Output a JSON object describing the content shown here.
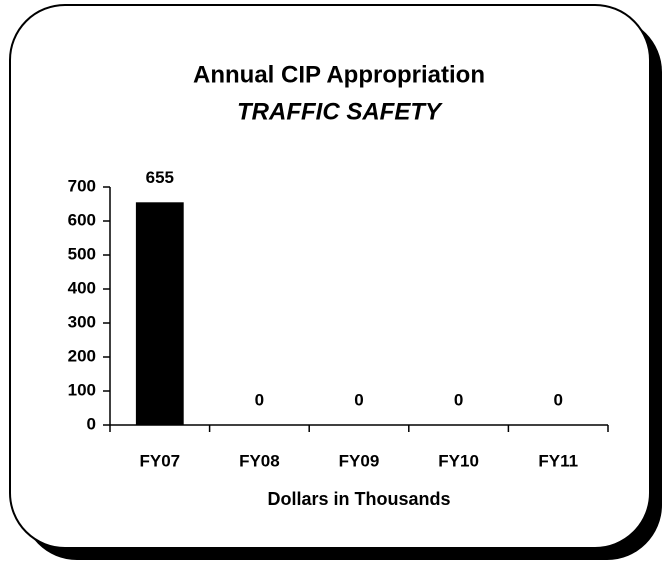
{
  "chart_data": {
    "type": "bar",
    "title": "Annual CIP Appropriation",
    "subtitle": "TRAFFIC SAFETY",
    "x_label": "Dollars in Thousands",
    "categories": [
      "FY07",
      "FY08",
      "FY09",
      "FY10",
      "FY11"
    ],
    "values": [
      655,
      0,
      0,
      0,
      0
    ],
    "color": "#000000",
    "ylim": [
      0,
      700
    ],
    "yticks": [
      0,
      100,
      200,
      300,
      400,
      500,
      600,
      700
    ],
    "grid": false
  }
}
